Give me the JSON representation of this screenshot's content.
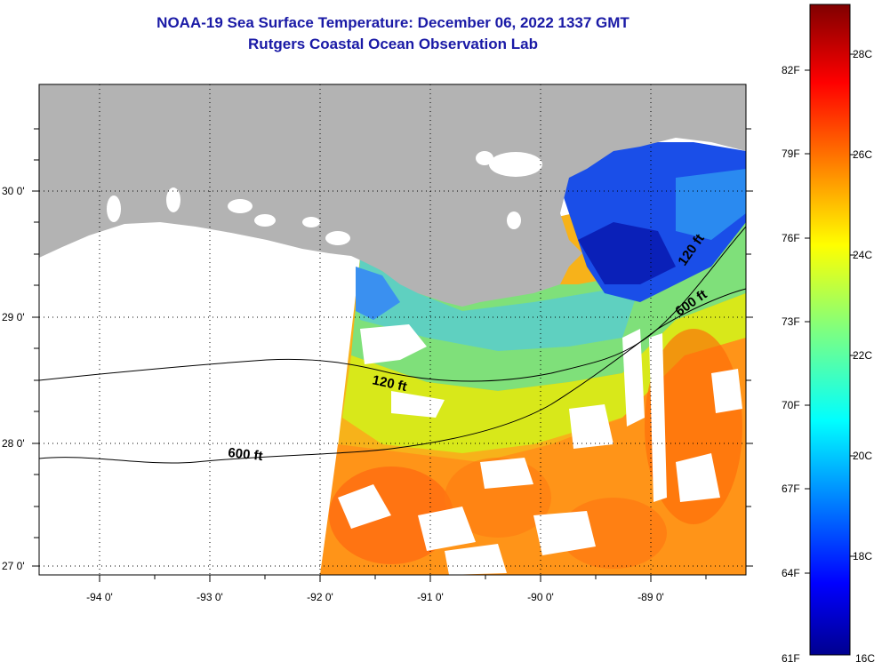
{
  "title": {
    "line1": "NOAA-19 Sea Surface Temperature:  December 06, 2022 1337 GMT",
    "line2": "Rutgers Coastal Ocean Observation Lab"
  },
  "map": {
    "lat_labels": [
      "30 0'",
      "29 0'",
      "28 0'",
      "27 0'"
    ],
    "lon_labels": [
      "-94 0'",
      "-93 0'",
      "-92 0'",
      "-91 0'",
      "-90 0'",
      "-89 0'"
    ],
    "contour_labels": [
      "120 ft",
      "600 ft",
      "120 ft",
      "600 ft"
    ]
  },
  "colorbar": {
    "fahrenheit_labels": [
      "82F",
      "79F",
      "76F",
      "73F",
      "70F",
      "67F",
      "64F",
      "61F"
    ],
    "celsius_labels": [
      "28C",
      "26C",
      "24C",
      "22C",
      "20C",
      "18C",
      "16C"
    ]
  },
  "colors": {
    "land": "#b3b3b3",
    "title": "#1a1aa6",
    "cold": "#00008f",
    "warm": "#800000"
  }
}
